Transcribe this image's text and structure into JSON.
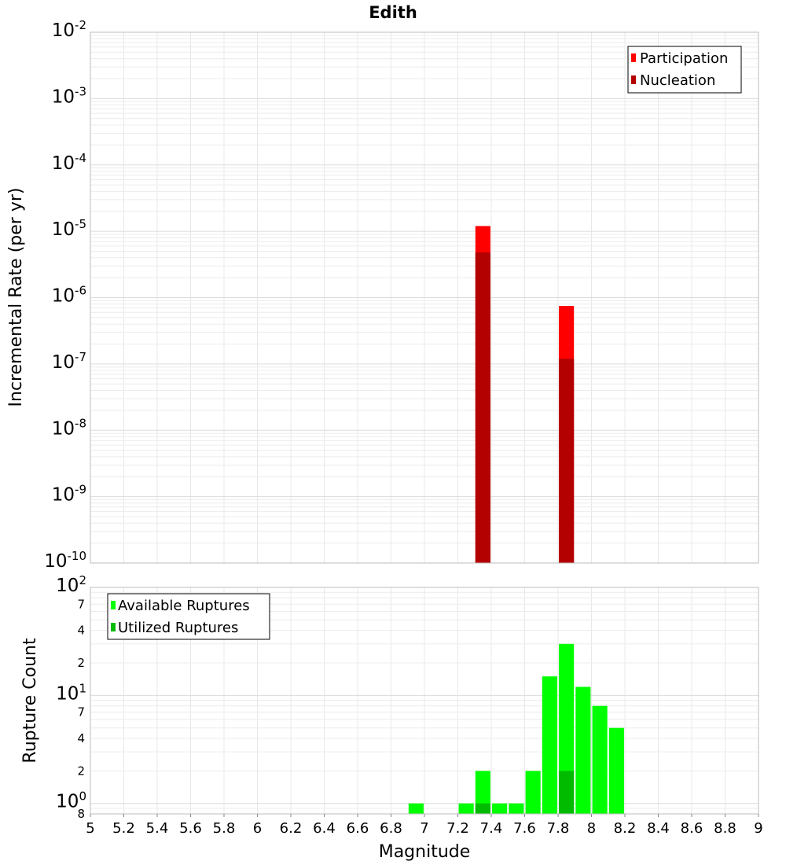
{
  "chart_data": [
    {
      "type": "bar",
      "title": "Edith",
      "xlabel": "",
      "ylabel": "Incremental Rate (per yr)",
      "yscale": "log",
      "xlim": [
        5,
        9
      ],
      "ylim": [
        1e-10,
        0.01
      ],
      "y_tick_base": "10",
      "y_tick_exponents": [
        "-10",
        "-9",
        "-8",
        "-7",
        "-6",
        "-5",
        "-4",
        "-3",
        "-2"
      ],
      "grid": true,
      "legend_position": "top-right",
      "bar_width": 0.09,
      "series": [
        {
          "name": "Participation",
          "color": "#ff0000",
          "x": [
            7.35,
            7.85
          ],
          "values": [
            1.2e-05,
            7.5e-07
          ]
        },
        {
          "name": "Nucleation",
          "color": "#b30000",
          "x": [
            7.35,
            7.85
          ],
          "values": [
            4.8e-06,
            1.2e-07
          ]
        }
      ]
    },
    {
      "type": "bar",
      "title": "",
      "xlabel": "Magnitude",
      "ylabel": "Rupture Count",
      "yscale": "log",
      "xlim": [
        5,
        9
      ],
      "ylim": [
        0.8,
        100
      ],
      "x_ticks": [
        "5",
        "5.2",
        "5.4",
        "5.6",
        "5.8",
        "6",
        "6.2",
        "6.4",
        "6.6",
        "6.8",
        "7",
        "7.2",
        "7.4",
        "7.6",
        "7.8",
        "8",
        "8.2",
        "8.4",
        "8.6",
        "8.8",
        "9"
      ],
      "y_tick_base": "10",
      "y_tick_exponents": [
        "0",
        "1",
        "2"
      ],
      "y_minor_tick_labels": [
        "8",
        "2",
        "4",
        "7",
        "2",
        "4",
        "7"
      ],
      "grid": true,
      "legend_position": "top-left",
      "bar_width": 0.09,
      "series": [
        {
          "name": "Available Ruptures",
          "color": "#00ff00",
          "x": [
            6.95,
            7.25,
            7.35,
            7.45,
            7.55,
            7.65,
            7.75,
            7.85,
            7.95,
            8.05,
            8.15
          ],
          "values": [
            1,
            1,
            2,
            1,
            1,
            2,
            15,
            30,
            12,
            8,
            5
          ]
        },
        {
          "name": "Utilized Ruptures",
          "color": "#00bb00",
          "x": [
            7.35,
            7.85
          ],
          "values": [
            1,
            2
          ]
        }
      ]
    }
  ]
}
